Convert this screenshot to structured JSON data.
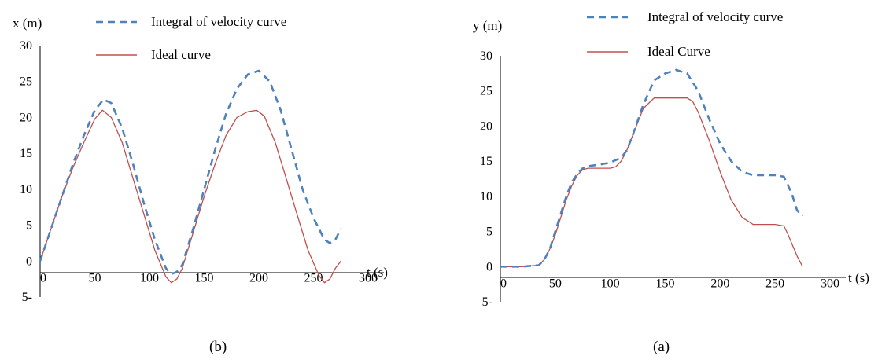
{
  "charts": [
    {
      "id": "left",
      "color_integral": "#4F81BD",
      "color_ideal": "#C0504D"
    },
    {
      "id": "right",
      "color_integral": "#4F81BD",
      "color_ideal": "#C0504D"
    }
  ],
  "chart_data": [
    {
      "type": "line",
      "caption": "(b)",
      "ylabel": "x (m)",
      "xlabel": "t (s)",
      "xlim": [
        0,
        300
      ],
      "ylim": [
        -5,
        30
      ],
      "x_ticks": [
        "0",
        "50",
        "100",
        "150",
        "200",
        "250",
        "300"
      ],
      "y_ticks": [
        "30",
        "25",
        "20",
        "15",
        "10",
        "5",
        "0",
        "5-"
      ],
      "legend": [
        "Integral of velocity curve",
        "Ideal curve"
      ],
      "series": [
        {
          "name": "Integral of velocity curve",
          "style": "dashed",
          "x": [
            0,
            10,
            20,
            30,
            40,
            50,
            58,
            65,
            75,
            85,
            95,
            105,
            115,
            120,
            125,
            130,
            140,
            150,
            160,
            170,
            180,
            190,
            200,
            210,
            220,
            230,
            240,
            250,
            260,
            265,
            270,
            275
          ],
          "y": [
            0,
            4.5,
            9,
            13.5,
            17.5,
            21,
            22.5,
            22,
            18.5,
            13.5,
            8,
            3,
            -1,
            -1.8,
            -1.5,
            -0.5,
            4.5,
            10,
            15.5,
            20.5,
            24,
            26,
            26.5,
            25,
            21,
            15.5,
            10,
            6,
            3,
            2.5,
            3,
            4.5
          ]
        },
        {
          "name": "Ideal curve",
          "style": "solid",
          "x": [
            0,
            10,
            20,
            30,
            40,
            50,
            57,
            65,
            75,
            85,
            95,
            105,
            115,
            120,
            125,
            130,
            140,
            150,
            160,
            170,
            180,
            190,
            198,
            205,
            215,
            225,
            235,
            245,
            255,
            260,
            265,
            270,
            275
          ],
          "y": [
            0,
            4.5,
            9,
            13,
            16.5,
            19.8,
            21,
            20,
            16.5,
            11.5,
            6.5,
            1.5,
            -2.2,
            -3,
            -2.5,
            -1,
            4,
            9,
            13.5,
            17.5,
            20,
            20.8,
            21,
            20.2,
            16.5,
            11.5,
            6.5,
            1.5,
            -2,
            -3,
            -2.5,
            -1,
            0
          ]
        }
      ]
    },
    {
      "type": "line",
      "caption": "(a)",
      "ylabel": "y (m)",
      "xlabel": "t (s)",
      "xlim": [
        0,
        300
      ],
      "ylim": [
        -5,
        30
      ],
      "x_ticks": [
        "0",
        "50",
        "100",
        "150",
        "200",
        "250",
        "300"
      ],
      "y_ticks": [
        "30",
        "25",
        "20",
        "15",
        "10",
        "5",
        "0",
        "5-"
      ],
      "legend": [
        "Integral of velocity curve",
        "Ideal Curve"
      ],
      "series": [
        {
          "name": "Integral of velocity curve",
          "style": "dashed",
          "x": [
            0,
            20,
            35,
            40,
            45,
            50,
            55,
            60,
            65,
            70,
            75,
            80,
            90,
            100,
            110,
            115,
            120,
            130,
            140,
            150,
            160,
            170,
            180,
            190,
            200,
            210,
            220,
            230,
            240,
            250,
            258,
            265,
            270,
            275
          ],
          "y": [
            0,
            0,
            0.2,
            1,
            2.5,
            5,
            7.5,
            10,
            12,
            13.2,
            14,
            14.3,
            14.5,
            14.8,
            15.5,
            16.5,
            18.5,
            23,
            26.5,
            27.5,
            28,
            27.5,
            25,
            21,
            17.5,
            15,
            13.5,
            13,
            13,
            13,
            12.8,
            10.5,
            8,
            7.2
          ]
        },
        {
          "name": "Ideal Curve",
          "style": "solid",
          "x": [
            0,
            20,
            35,
            40,
            45,
            50,
            55,
            60,
            65,
            70,
            75,
            80,
            90,
            100,
            105,
            110,
            115,
            120,
            130,
            140,
            150,
            160,
            170,
            175,
            180,
            190,
            200,
            210,
            220,
            230,
            240,
            250,
            258,
            262,
            266,
            270,
            275
          ],
          "y": [
            0,
            0,
            0.2,
            1,
            2.5,
            4.5,
            7,
            9.5,
            11.5,
            13,
            13.8,
            14,
            14,
            14,
            14.2,
            15,
            16.5,
            18.5,
            22.5,
            24,
            24,
            24,
            24,
            23.5,
            22,
            18,
            13.5,
            9.5,
            7,
            6,
            6,
            6,
            5.8,
            4.5,
            3,
            1.5,
            0
          ]
        }
      ]
    }
  ]
}
